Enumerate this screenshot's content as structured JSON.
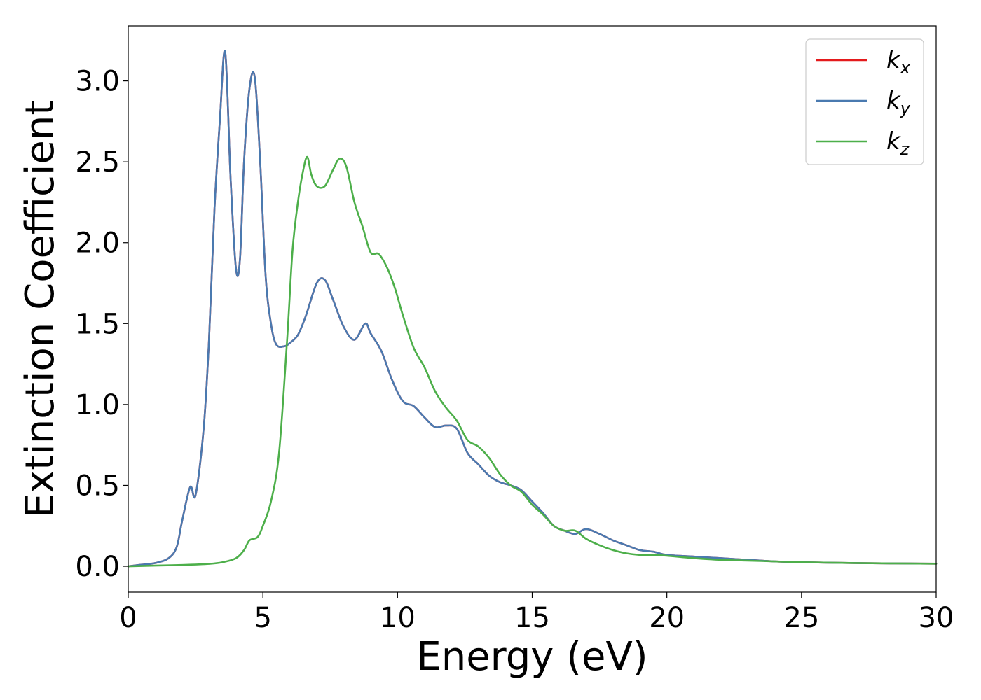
{
  "chart_data": {
    "type": "line",
    "title": "",
    "xlabel": "Energy (eV)",
    "ylabel": "Extinction Coefficient",
    "xlim": [
      0,
      30
    ],
    "ylim": [
      -0.16,
      3.34
    ],
    "xticks": [
      0,
      5,
      10,
      15,
      20,
      25,
      30
    ],
    "xtick_labels": [
      "0",
      "5",
      "10",
      "15",
      "20",
      "25",
      "30"
    ],
    "yticks": [
      0.0,
      0.5,
      1.0,
      1.5,
      2.0,
      2.5,
      3.0
    ],
    "ytick_labels": [
      "0.0",
      "0.5",
      "1.0",
      "1.5",
      "2.0",
      "2.5",
      "3.0"
    ],
    "grid": false,
    "legend_position": "top-right",
    "series": [
      {
        "name": "k",
        "subscript": "x",
        "color": "#e41a1c",
        "x": [
          0,
          0.5,
          1.0,
          1.5,
          1.8,
          2.0,
          2.3,
          2.5,
          2.8,
          3.0,
          3.2,
          3.4,
          3.6,
          3.8,
          4.0,
          4.15,
          4.3,
          4.5,
          4.7,
          4.9,
          5.1,
          5.3,
          5.5,
          5.8,
          6.0,
          6.3,
          6.6,
          7.0,
          7.3,
          7.6,
          8.0,
          8.4,
          8.8,
          9.0,
          9.4,
          9.8,
          10.2,
          10.6,
          11.0,
          11.4,
          11.8,
          12.2,
          12.6,
          13.0,
          13.4,
          13.8,
          14.2,
          14.6,
          15.0,
          15.4,
          15.8,
          16.2,
          16.6,
          17.0,
          17.5,
          18.0,
          18.5,
          19.0,
          19.5,
          20,
          21,
          22,
          23,
          24,
          25,
          26,
          27,
          28,
          29,
          30
        ],
        "values": [
          0.0,
          0.01,
          0.02,
          0.05,
          0.12,
          0.28,
          0.49,
          0.44,
          0.85,
          1.4,
          2.2,
          2.75,
          3.18,
          2.4,
          1.84,
          1.9,
          2.5,
          2.95,
          3.02,
          2.5,
          1.8,
          1.5,
          1.37,
          1.36,
          1.38,
          1.43,
          1.55,
          1.75,
          1.77,
          1.65,
          1.48,
          1.4,
          1.5,
          1.44,
          1.33,
          1.15,
          1.02,
          0.99,
          0.92,
          0.86,
          0.87,
          0.85,
          0.7,
          0.63,
          0.56,
          0.52,
          0.5,
          0.47,
          0.4,
          0.33,
          0.25,
          0.22,
          0.2,
          0.23,
          0.2,
          0.16,
          0.13,
          0.1,
          0.09,
          0.07,
          0.06,
          0.05,
          0.04,
          0.03,
          0.025,
          0.022,
          0.02,
          0.018,
          0.017,
          0.016
        ]
      },
      {
        "name": "k",
        "subscript": "y",
        "color": "#4a7ab0",
        "x": [
          0,
          0.5,
          1.0,
          1.5,
          1.8,
          2.0,
          2.3,
          2.5,
          2.8,
          3.0,
          3.2,
          3.4,
          3.6,
          3.8,
          4.0,
          4.15,
          4.3,
          4.5,
          4.7,
          4.9,
          5.1,
          5.3,
          5.5,
          5.8,
          6.0,
          6.3,
          6.6,
          7.0,
          7.3,
          7.6,
          8.0,
          8.4,
          8.8,
          9.0,
          9.4,
          9.8,
          10.2,
          10.6,
          11.0,
          11.4,
          11.8,
          12.2,
          12.6,
          13.0,
          13.4,
          13.8,
          14.2,
          14.6,
          15.0,
          15.4,
          15.8,
          16.2,
          16.6,
          17.0,
          17.5,
          18.0,
          18.5,
          19.0,
          19.5,
          20,
          21,
          22,
          23,
          24,
          25,
          26,
          27,
          28,
          29,
          30
        ],
        "values": [
          0.0,
          0.01,
          0.02,
          0.05,
          0.12,
          0.28,
          0.49,
          0.44,
          0.85,
          1.4,
          2.2,
          2.75,
          3.18,
          2.4,
          1.84,
          1.9,
          2.5,
          2.95,
          3.02,
          2.5,
          1.8,
          1.5,
          1.37,
          1.36,
          1.38,
          1.43,
          1.55,
          1.75,
          1.77,
          1.65,
          1.48,
          1.4,
          1.5,
          1.44,
          1.33,
          1.15,
          1.02,
          0.99,
          0.92,
          0.86,
          0.87,
          0.85,
          0.7,
          0.63,
          0.56,
          0.52,
          0.5,
          0.47,
          0.4,
          0.33,
          0.25,
          0.22,
          0.2,
          0.23,
          0.2,
          0.16,
          0.13,
          0.1,
          0.09,
          0.07,
          0.06,
          0.05,
          0.04,
          0.03,
          0.025,
          0.022,
          0.02,
          0.018,
          0.017,
          0.016
        ]
      },
      {
        "name": "k",
        "subscript": "z",
        "color": "#4daf4a",
        "x": [
          0,
          1,
          2,
          3,
          3.5,
          4.0,
          4.3,
          4.5,
          4.8,
          5.0,
          5.3,
          5.6,
          5.9,
          6.1,
          6.3,
          6.5,
          6.65,
          6.8,
          7.0,
          7.3,
          7.6,
          7.85,
          8.1,
          8.4,
          8.7,
          9.0,
          9.3,
          9.6,
          9.9,
          10.2,
          10.6,
          11.0,
          11.4,
          11.8,
          12.2,
          12.6,
          13.0,
          13.4,
          13.8,
          14.2,
          14.6,
          15.0,
          15.4,
          15.8,
          16.2,
          16.6,
          17.0,
          17.5,
          18.0,
          18.5,
          19.0,
          19.5,
          20,
          21,
          22,
          23,
          24,
          25,
          26,
          27,
          28,
          29,
          30
        ],
        "values": [
          0.0,
          0.004,
          0.008,
          0.015,
          0.025,
          0.05,
          0.1,
          0.16,
          0.18,
          0.25,
          0.4,
          0.7,
          1.4,
          1.95,
          2.25,
          2.45,
          2.53,
          2.42,
          2.35,
          2.35,
          2.45,
          2.52,
          2.47,
          2.25,
          2.1,
          1.94,
          1.93,
          1.85,
          1.72,
          1.55,
          1.35,
          1.23,
          1.08,
          0.98,
          0.9,
          0.78,
          0.74,
          0.67,
          0.57,
          0.5,
          0.46,
          0.38,
          0.32,
          0.25,
          0.22,
          0.22,
          0.17,
          0.13,
          0.1,
          0.08,
          0.07,
          0.07,
          0.065,
          0.05,
          0.04,
          0.035,
          0.03,
          0.025,
          0.022,
          0.02,
          0.018,
          0.017,
          0.016
        ]
      }
    ]
  }
}
